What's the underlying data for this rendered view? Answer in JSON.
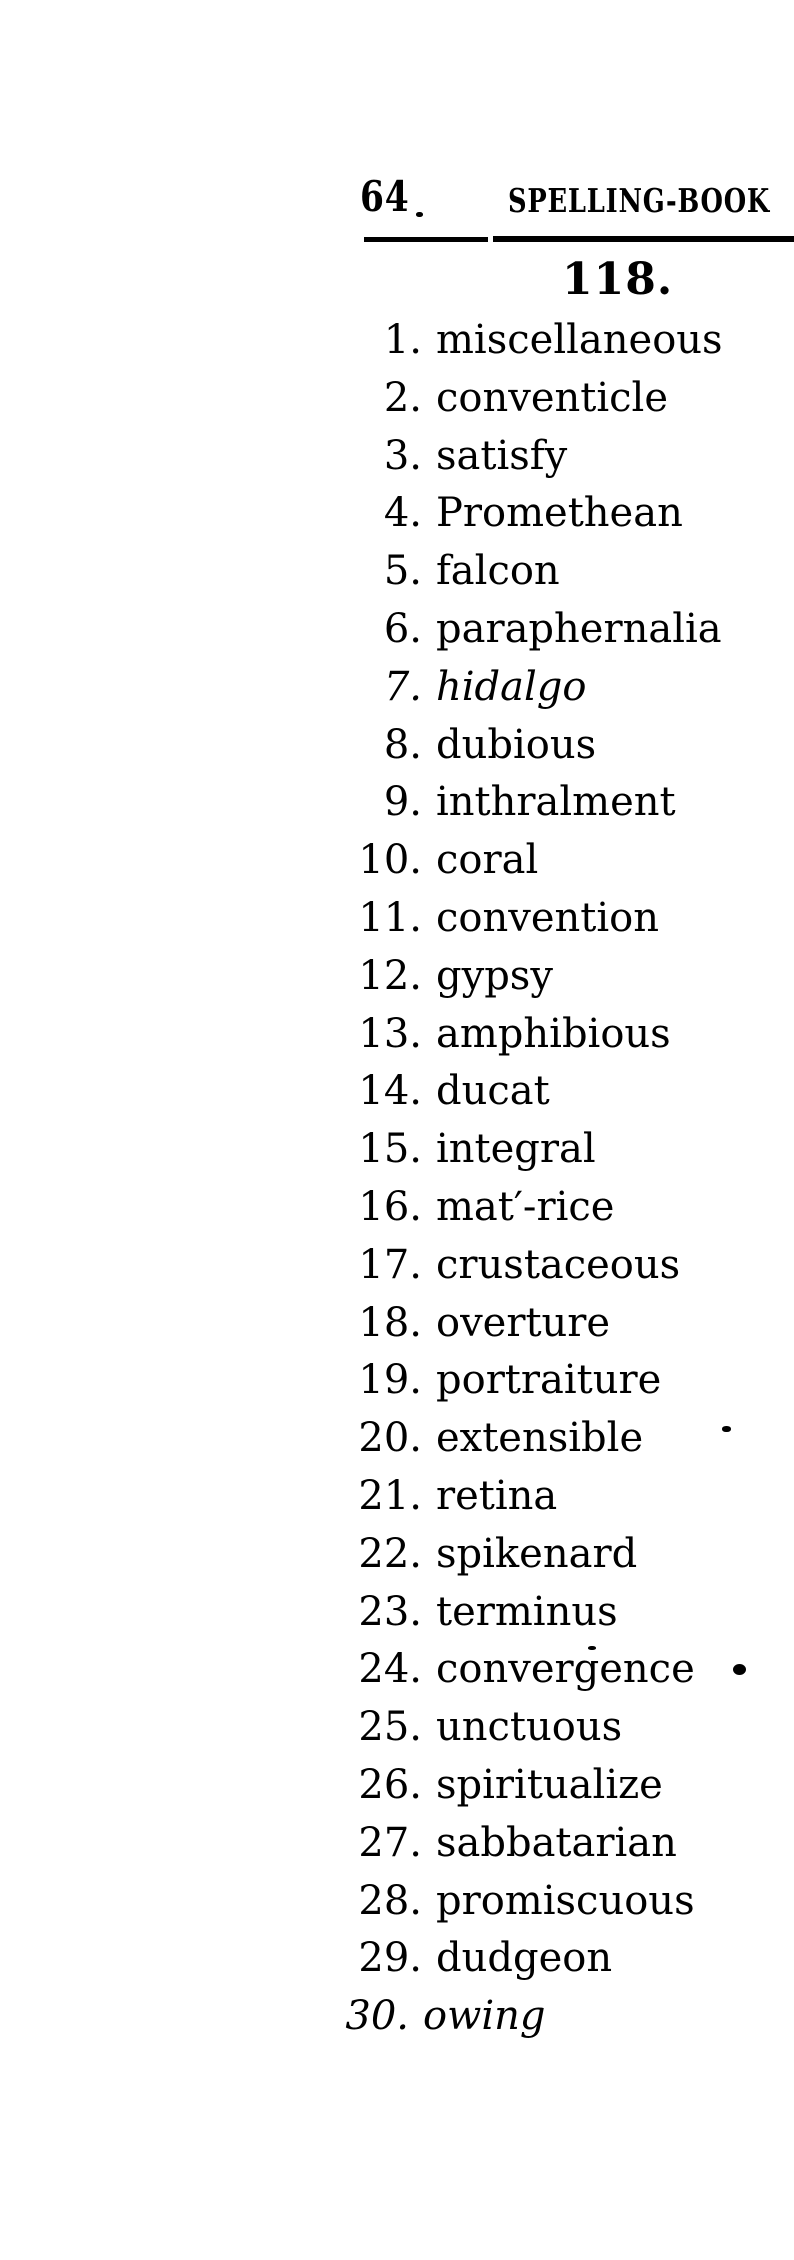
{
  "page": {
    "background": "#ffffff",
    "ink_color": "#000000"
  },
  "header": {
    "page_number": "64",
    "title": "SPELLING-BOOK"
  },
  "lesson": {
    "heading": "118."
  },
  "word_list": {
    "items": [
      {
        "num": "1.",
        "word": "miscellaneous",
        "italic": false
      },
      {
        "num": "2.",
        "word": "conventicle",
        "italic": false
      },
      {
        "num": "3.",
        "word": "satisfy",
        "italic": false
      },
      {
        "num": "4.",
        "word": "Promethean",
        "italic": false
      },
      {
        "num": "5.",
        "word": "falcon",
        "italic": false
      },
      {
        "num": "6.",
        "word": "paraphernalia",
        "italic": false
      },
      {
        "num": "7.",
        "word": "hidalgo",
        "italic": true
      },
      {
        "num": "8.",
        "word": "dubious",
        "italic": false
      },
      {
        "num": "9.",
        "word": "inthralment",
        "italic": false
      },
      {
        "num": "10.",
        "word": "coral",
        "italic": false
      },
      {
        "num": "11.",
        "word": "convention",
        "italic": false
      },
      {
        "num": "12.",
        "word": "gypsy",
        "italic": false
      },
      {
        "num": "13.",
        "word": "amphibious",
        "italic": false
      },
      {
        "num": "14.",
        "word": "ducat",
        "italic": false
      },
      {
        "num": "15.",
        "word": "integral",
        "italic": false
      },
      {
        "num": "16.",
        "word": "mat′-rice",
        "italic": false
      },
      {
        "num": "17.",
        "word": "crustaceous",
        "italic": false
      },
      {
        "num": "18.",
        "word": "overture",
        "italic": false
      },
      {
        "num": "19.",
        "word": "portraiture",
        "italic": false
      },
      {
        "num": "20.",
        "word": "extensible",
        "italic": false
      },
      {
        "num": "21.",
        "word": "retina",
        "italic": false
      },
      {
        "num": "22.",
        "word": "spikenard",
        "italic": false
      },
      {
        "num": "23.",
        "word": "terminus",
        "italic": false
      },
      {
        "num": "24.",
        "word": "convergence",
        "italic": false
      },
      {
        "num": "25.",
        "word": "unctuous",
        "italic": false
      },
      {
        "num": "26.",
        "word": "spiritualize",
        "italic": false
      },
      {
        "num": "27.",
        "word": "sabbatarian",
        "italic": false
      },
      {
        "num": "28.",
        "word": "promiscuous",
        "italic": false
      },
      {
        "num": "29.",
        "word": "dudgeon",
        "italic": false
      },
      {
        "num": "30.",
        "word": "owing",
        "italic": true,
        "outdent": true
      }
    ]
  }
}
